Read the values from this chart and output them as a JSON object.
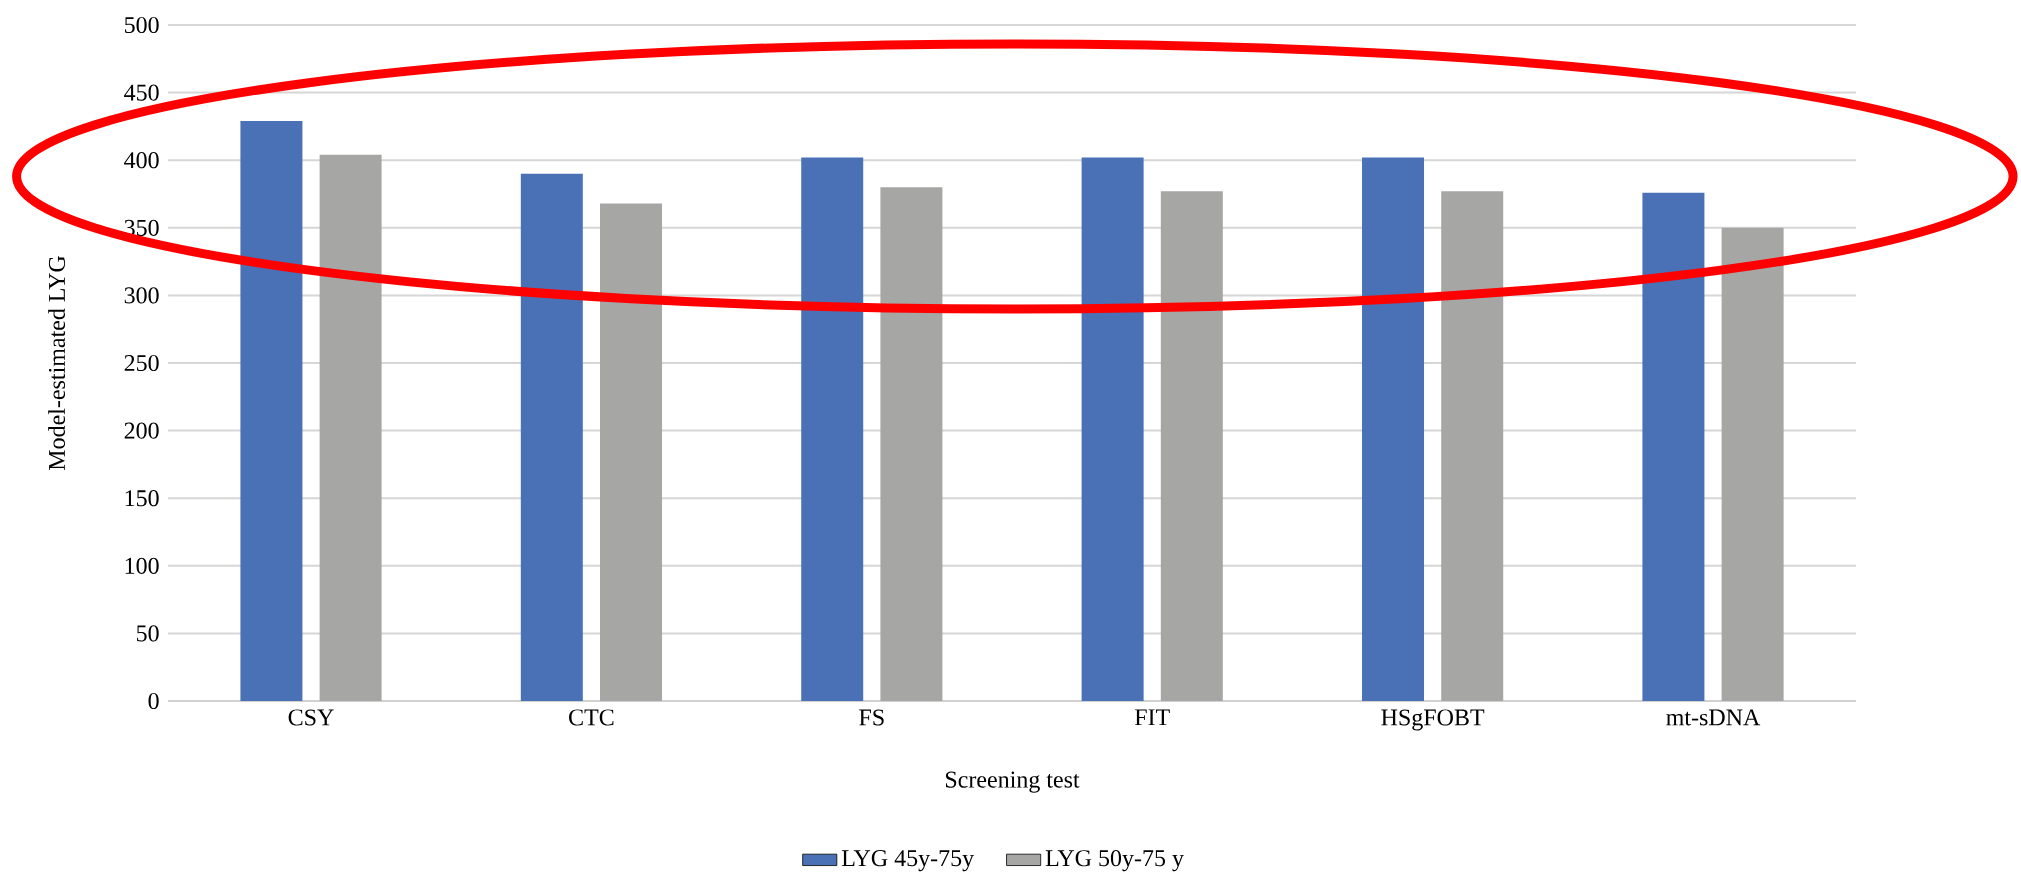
{
  "chart_data": {
    "type": "bar",
    "xlabel": "Screening test",
    "ylabel": "Model-estimated LYG",
    "categories": [
      "CSY",
      "CTC",
      "FS",
      "FIT",
      "HSgFOBT",
      "mt-sDNA"
    ],
    "series": [
      {
        "name": "LYG 45y-75y",
        "color": "#4a71b5",
        "values": [
          429,
          390,
          402,
          402,
          402,
          376
        ]
      },
      {
        "name": "LYG 50y-75 y",
        "color": "#a6a6a5",
        "values": [
          404,
          368,
          380,
          377,
          377,
          350
        ]
      }
    ],
    "ylim": [
      0,
      500
    ],
    "yticks": [
      0,
      50,
      100,
      150,
      200,
      250,
      300,
      350,
      400,
      450,
      500
    ],
    "grid": "y",
    "legend": "bottom"
  }
}
